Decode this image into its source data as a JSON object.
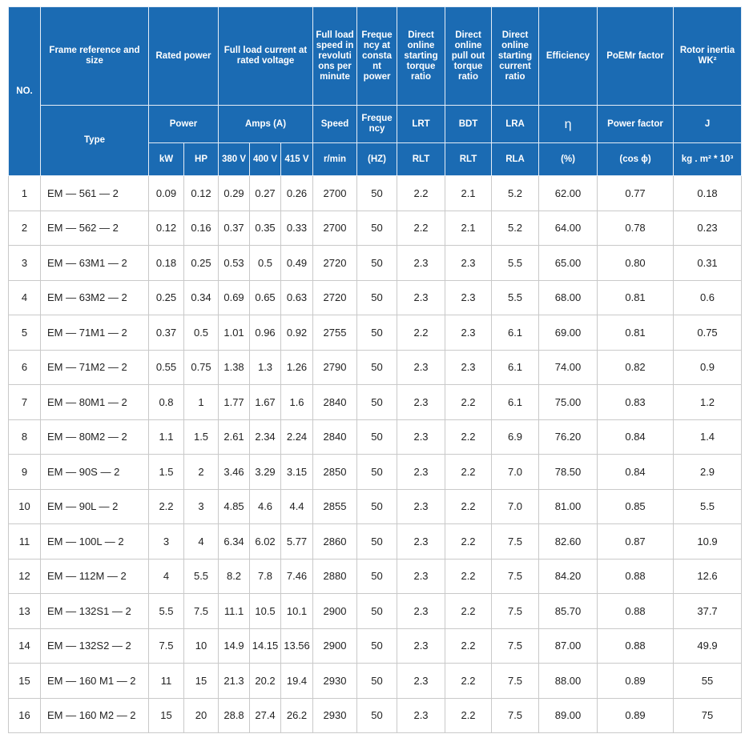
{
  "table": {
    "header": {
      "no": "NO.",
      "frame": "Frame reference and size",
      "rated_power": "Rated power",
      "full_load_current": "Full load current at rated voltage",
      "speed_desc": "Full load speed in revolutions per minute",
      "freq_desc": "Frequency at constant power",
      "lrt_desc": "Direct online starting torque ratio",
      "bdt_desc": "Direct online pull out torque ratio",
      "lra_desc": "Direct online starting current ratio",
      "efficiency": "Efficiency",
      "pf_desc": "PoEMr factor",
      "inertia_desc": "Rotor inertia WK²",
      "type": "Type",
      "power": "Power",
      "amps": "Amps (A)",
      "speed": "Speed",
      "frequency": "Frequency",
      "lrt": "LRT",
      "bdt": "BDT",
      "lra": "LRA",
      "eta": "η",
      "power_factor": "Power factor",
      "j": "J",
      "units": [
        "kW",
        "HP",
        "380 V",
        "400 V",
        "415 V",
        "r/min",
        "(HZ)",
        "RLT",
        "RLT",
        "RLA",
        "(%)",
        "(cos ϕ)",
        "kg . m² * 10³"
      ]
    },
    "rows": [
      [
        "1",
        "EM — 561 — 2",
        "0.09",
        "0.12",
        "0.29",
        "0.27",
        "0.26",
        "2700",
        "50",
        "2.2",
        "2.1",
        "5.2",
        "62.00",
        "0.77",
        "0.18"
      ],
      [
        "2",
        "EM — 562 — 2",
        "0.12",
        "0.16",
        "0.37",
        "0.35",
        "0.33",
        "2700",
        "50",
        "2.2",
        "2.1",
        "5.2",
        "64.00",
        "0.78",
        "0.23"
      ],
      [
        "3",
        "EM — 63M1 — 2",
        "0.18",
        "0.25",
        "0.53",
        "0.5",
        "0.49",
        "2720",
        "50",
        "2.3",
        "2.3",
        "5.5",
        "65.00",
        "0.80",
        "0.31"
      ],
      [
        "4",
        "EM — 63M2 — 2",
        "0.25",
        "0.34",
        "0.69",
        "0.65",
        "0.63",
        "2720",
        "50",
        "2.3",
        "2.3",
        "5.5",
        "68.00",
        "0.81",
        "0.6"
      ],
      [
        "5",
        "EM — 71M1 — 2",
        "0.37",
        "0.5",
        "1.01",
        "0.96",
        "0.92",
        "2755",
        "50",
        "2.2",
        "2.3",
        "6.1",
        "69.00",
        "0.81",
        "0.75"
      ],
      [
        "6",
        "EM — 71M2 — 2",
        "0.55",
        "0.75",
        "1.38",
        "1.3",
        "1.26",
        "2790",
        "50",
        "2.3",
        "2.3",
        "6.1",
        "74.00",
        "0.82",
        "0.9"
      ],
      [
        "7",
        "EM — 80M1 — 2",
        "0.8",
        "1",
        "1.77",
        "1.67",
        "1.6",
        "2840",
        "50",
        "2.3",
        "2.2",
        "6.1",
        "75.00",
        "0.83",
        "1.2"
      ],
      [
        "8",
        "EM — 80M2 — 2",
        "1.1",
        "1.5",
        "2.61",
        "2.34",
        "2.24",
        "2840",
        "50",
        "2.3",
        "2.2",
        "6.9",
        "76.20",
        "0.84",
        "1.4"
      ],
      [
        "9",
        "EM — 90S — 2",
        "1.5",
        "2",
        "3.46",
        "3.29",
        "3.15",
        "2850",
        "50",
        "2.3",
        "2.2",
        "7.0",
        "78.50",
        "0.84",
        "2.9"
      ],
      [
        "10",
        "EM — 90L — 2",
        "2.2",
        "3",
        "4.85",
        "4.6",
        "4.4",
        "2855",
        "50",
        "2.3",
        "2.2",
        "7.0",
        "81.00",
        "0.85",
        "5.5"
      ],
      [
        "11",
        "EM — 100L — 2",
        "3",
        "4",
        "6.34",
        "6.02",
        "5.77",
        "2860",
        "50",
        "2.3",
        "2.2",
        "7.5",
        "82.60",
        "0.87",
        "10.9"
      ],
      [
        "12",
        "EM — 112M — 2",
        "4",
        "5.5",
        "8.2",
        "7.8",
        "7.46",
        "2880",
        "50",
        "2.3",
        "2.2",
        "7.5",
        "84.20",
        "0.88",
        "12.6"
      ],
      [
        "13",
        "EM — 132S1 — 2",
        "5.5",
        "7.5",
        "11.1",
        "10.5",
        "10.1",
        "2900",
        "50",
        "2.3",
        "2.2",
        "7.5",
        "85.70",
        "0.88",
        "37.7"
      ],
      [
        "14",
        "EM — 132S2 — 2",
        "7.5",
        "10",
        "14.9",
        "14.15",
        "13.56",
        "2900",
        "50",
        "2.3",
        "2.2",
        "7.5",
        "87.00",
        "0.88",
        "49.9"
      ],
      [
        "15",
        "EM — 160 M1 — 2",
        "11",
        "15",
        "21.3",
        "20.2",
        "19.4",
        "2930",
        "50",
        "2.3",
        "2.2",
        "7.5",
        "88.00",
        "0.89",
        "55"
      ],
      [
        "16",
        "EM — 160 M2 — 2",
        "15",
        "20",
        "28.8",
        "27.4",
        "26.2",
        "2930",
        "50",
        "2.3",
        "2.2",
        "7.5",
        "89.00",
        "0.89",
        "75"
      ]
    ]
  }
}
